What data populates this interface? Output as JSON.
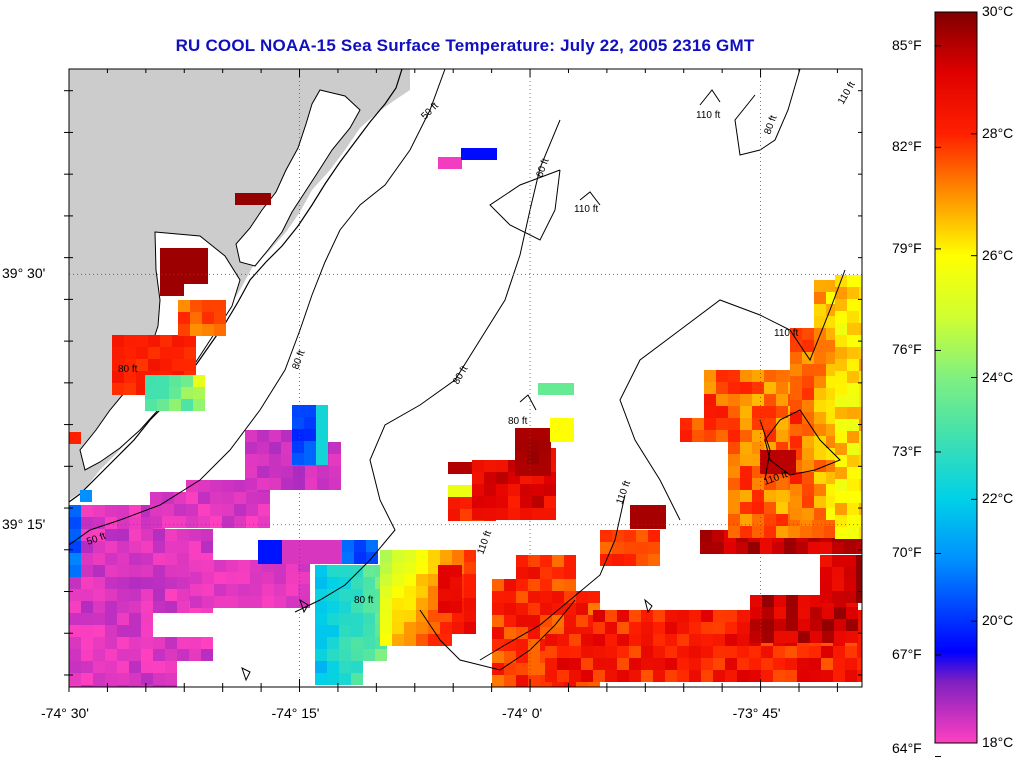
{
  "title": "RU COOL  NOAA-15  Sea Surface Temperature:  July 22, 2005 2316 GMT",
  "map": {
    "lon_range": [
      -74.5,
      -73.64
    ],
    "lat_range": [
      39.088,
      39.705
    ],
    "x_ticks": [
      {
        "lon": -74.5,
        "label": "-74° 30'"
      },
      {
        "lon": -74.25,
        "label": "-74° 15'"
      },
      {
        "lon": -74.0,
        "label": "-74° 0'"
      },
      {
        "lon": -73.75,
        "label": "-73° 45'"
      }
    ],
    "y_ticks": [
      {
        "lat": 39.5,
        "label": "39° 30'"
      },
      {
        "lat": 39.25,
        "label": "39° 15'"
      }
    ],
    "grid": true,
    "land_color": "#cccccc",
    "contour_labels": [
      {
        "label": "50 ft"
      },
      {
        "label": "60 ft"
      },
      {
        "label": "110 ft"
      },
      {
        "label": "80 ft"
      },
      {
        "label": "110 ft"
      },
      {
        "label": "110 ft"
      },
      {
        "label": "80 ft"
      },
      {
        "label": "80 ft"
      },
      {
        "label": "80 ft"
      },
      {
        "label": "110 ft"
      },
      {
        "label": "110 ft"
      },
      {
        "label": "50 ft"
      },
      {
        "label": "110 ft"
      },
      {
        "label": "80 ft"
      },
      {
        "label": "110 ft"
      },
      {
        "label": "80 ft"
      }
    ]
  },
  "colorbar": {
    "range_c": [
      18,
      30
    ],
    "fahrenheit_labels": [
      "85°F",
      "82°F",
      "79°F",
      "76°F",
      "73°F",
      "70°F",
      "67°F",
      "64°F"
    ],
    "celsius_labels": [
      "30°C",
      "28°C",
      "26°C",
      "24°C",
      "22°C",
      "20°C",
      "18°C"
    ],
    "stops": [
      {
        "t": 18,
        "color": "#ff40c0"
      },
      {
        "t": 19,
        "color": "#8020c0"
      },
      {
        "t": 19.5,
        "color": "#0000ff"
      },
      {
        "t": 21,
        "color": "#0090ff"
      },
      {
        "t": 22,
        "color": "#00d0e8"
      },
      {
        "t": 23,
        "color": "#40e0b0"
      },
      {
        "t": 24,
        "color": "#80f080"
      },
      {
        "t": 25,
        "color": "#d0ff30"
      },
      {
        "t": 26,
        "color": "#ffff00"
      },
      {
        "t": 27,
        "color": "#ff9000"
      },
      {
        "t": 28,
        "color": "#ff2000"
      },
      {
        "t": 29,
        "color": "#e00000"
      },
      {
        "t": 30,
        "color": "#800000"
      }
    ]
  }
}
